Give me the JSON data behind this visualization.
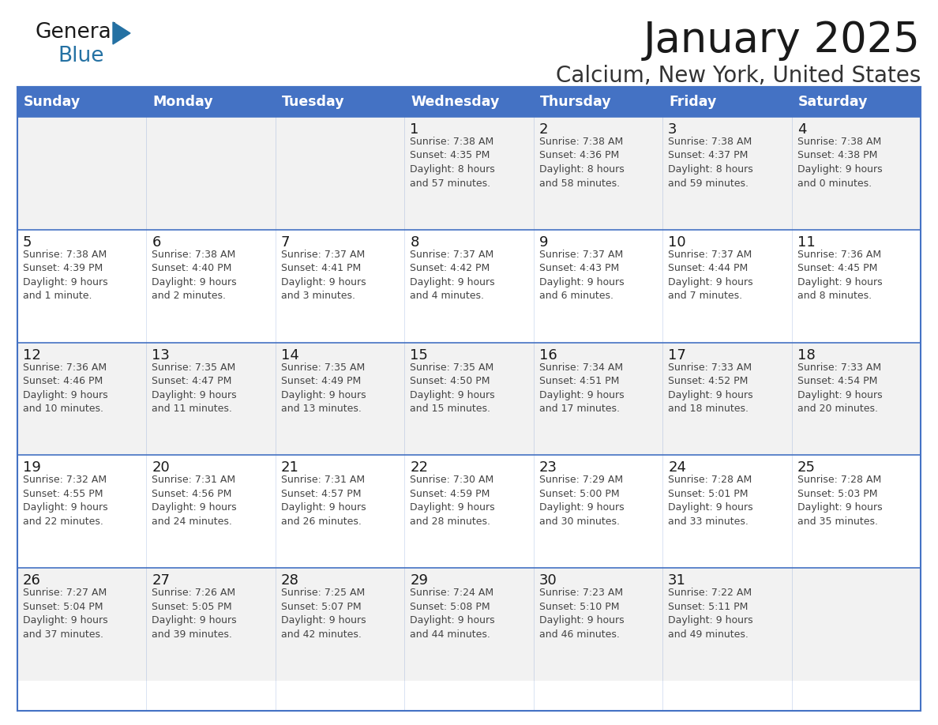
{
  "title": "January 2025",
  "subtitle": "Calcium, New York, United States",
  "header_bg_color": "#4472C4",
  "header_text_color": "#FFFFFF",
  "cell_bg_color_odd": "#F2F2F2",
  "cell_bg_color_even": "#FFFFFF",
  "border_color": "#4472C4",
  "day_names": [
    "Sunday",
    "Monday",
    "Tuesday",
    "Wednesday",
    "Thursday",
    "Friday",
    "Saturday"
  ],
  "title_color": "#1a1a1a",
  "subtitle_color": "#333333",
  "cell_text_color": "#444444",
  "day_num_color": "#1a1a1a",
  "calendar_data": [
    [
      {
        "day": "",
        "text": ""
      },
      {
        "day": "",
        "text": ""
      },
      {
        "day": "",
        "text": ""
      },
      {
        "day": "1",
        "text": "Sunrise: 7:38 AM\nSunset: 4:35 PM\nDaylight: 8 hours\nand 57 minutes."
      },
      {
        "day": "2",
        "text": "Sunrise: 7:38 AM\nSunset: 4:36 PM\nDaylight: 8 hours\nand 58 minutes."
      },
      {
        "day": "3",
        "text": "Sunrise: 7:38 AM\nSunset: 4:37 PM\nDaylight: 8 hours\nand 59 minutes."
      },
      {
        "day": "4",
        "text": "Sunrise: 7:38 AM\nSunset: 4:38 PM\nDaylight: 9 hours\nand 0 minutes."
      }
    ],
    [
      {
        "day": "5",
        "text": "Sunrise: 7:38 AM\nSunset: 4:39 PM\nDaylight: 9 hours\nand 1 minute."
      },
      {
        "day": "6",
        "text": "Sunrise: 7:38 AM\nSunset: 4:40 PM\nDaylight: 9 hours\nand 2 minutes."
      },
      {
        "day": "7",
        "text": "Sunrise: 7:37 AM\nSunset: 4:41 PM\nDaylight: 9 hours\nand 3 minutes."
      },
      {
        "day": "8",
        "text": "Sunrise: 7:37 AM\nSunset: 4:42 PM\nDaylight: 9 hours\nand 4 minutes."
      },
      {
        "day": "9",
        "text": "Sunrise: 7:37 AM\nSunset: 4:43 PM\nDaylight: 9 hours\nand 6 minutes."
      },
      {
        "day": "10",
        "text": "Sunrise: 7:37 AM\nSunset: 4:44 PM\nDaylight: 9 hours\nand 7 minutes."
      },
      {
        "day": "11",
        "text": "Sunrise: 7:36 AM\nSunset: 4:45 PM\nDaylight: 9 hours\nand 8 minutes."
      }
    ],
    [
      {
        "day": "12",
        "text": "Sunrise: 7:36 AM\nSunset: 4:46 PM\nDaylight: 9 hours\nand 10 minutes."
      },
      {
        "day": "13",
        "text": "Sunrise: 7:35 AM\nSunset: 4:47 PM\nDaylight: 9 hours\nand 11 minutes."
      },
      {
        "day": "14",
        "text": "Sunrise: 7:35 AM\nSunset: 4:49 PM\nDaylight: 9 hours\nand 13 minutes."
      },
      {
        "day": "15",
        "text": "Sunrise: 7:35 AM\nSunset: 4:50 PM\nDaylight: 9 hours\nand 15 minutes."
      },
      {
        "day": "16",
        "text": "Sunrise: 7:34 AM\nSunset: 4:51 PM\nDaylight: 9 hours\nand 17 minutes."
      },
      {
        "day": "17",
        "text": "Sunrise: 7:33 AM\nSunset: 4:52 PM\nDaylight: 9 hours\nand 18 minutes."
      },
      {
        "day": "18",
        "text": "Sunrise: 7:33 AM\nSunset: 4:54 PM\nDaylight: 9 hours\nand 20 minutes."
      }
    ],
    [
      {
        "day": "19",
        "text": "Sunrise: 7:32 AM\nSunset: 4:55 PM\nDaylight: 9 hours\nand 22 minutes."
      },
      {
        "day": "20",
        "text": "Sunrise: 7:31 AM\nSunset: 4:56 PM\nDaylight: 9 hours\nand 24 minutes."
      },
      {
        "day": "21",
        "text": "Sunrise: 7:31 AM\nSunset: 4:57 PM\nDaylight: 9 hours\nand 26 minutes."
      },
      {
        "day": "22",
        "text": "Sunrise: 7:30 AM\nSunset: 4:59 PM\nDaylight: 9 hours\nand 28 minutes."
      },
      {
        "day": "23",
        "text": "Sunrise: 7:29 AM\nSunset: 5:00 PM\nDaylight: 9 hours\nand 30 minutes."
      },
      {
        "day": "24",
        "text": "Sunrise: 7:28 AM\nSunset: 5:01 PM\nDaylight: 9 hours\nand 33 minutes."
      },
      {
        "day": "25",
        "text": "Sunrise: 7:28 AM\nSunset: 5:03 PM\nDaylight: 9 hours\nand 35 minutes."
      }
    ],
    [
      {
        "day": "26",
        "text": "Sunrise: 7:27 AM\nSunset: 5:04 PM\nDaylight: 9 hours\nand 37 minutes."
      },
      {
        "day": "27",
        "text": "Sunrise: 7:26 AM\nSunset: 5:05 PM\nDaylight: 9 hours\nand 39 minutes."
      },
      {
        "day": "28",
        "text": "Sunrise: 7:25 AM\nSunset: 5:07 PM\nDaylight: 9 hours\nand 42 minutes."
      },
      {
        "day": "29",
        "text": "Sunrise: 7:24 AM\nSunset: 5:08 PM\nDaylight: 9 hours\nand 44 minutes."
      },
      {
        "day": "30",
        "text": "Sunrise: 7:23 AM\nSunset: 5:10 PM\nDaylight: 9 hours\nand 46 minutes."
      },
      {
        "day": "31",
        "text": "Sunrise: 7:22 AM\nSunset: 5:11 PM\nDaylight: 9 hours\nand 49 minutes."
      },
      {
        "day": "",
        "text": ""
      }
    ]
  ],
  "fig_width": 11.88,
  "fig_height": 9.18,
  "dpi": 100
}
